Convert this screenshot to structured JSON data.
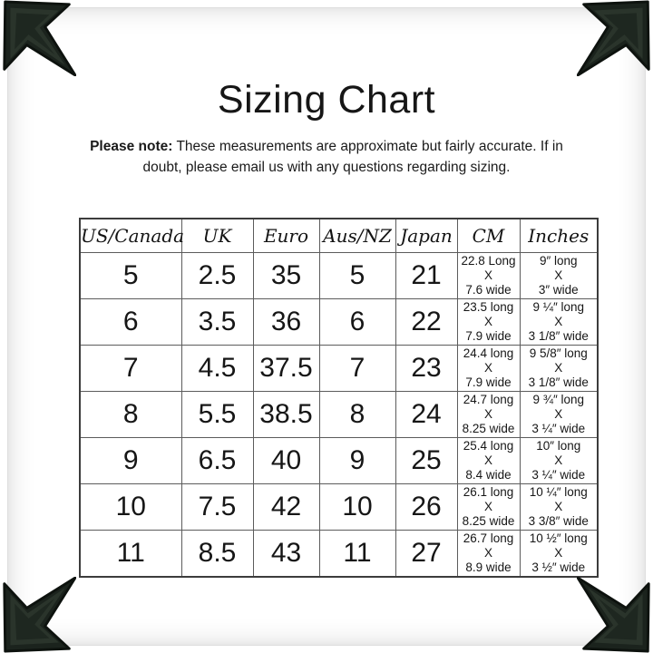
{
  "page": {
    "title": "Sizing Chart",
    "note_bold": "Please note:",
    "note_rest": "These measurements are approximate but fairly accurate. If in doubt, please email us with any questions regarding sizing."
  },
  "colors": {
    "text": "#161616",
    "table_border_outer": "#3c3c3c",
    "table_border_inner": "#5c5c5c",
    "photo_corner_dark": "#1b231d",
    "page_edge_shadow": "#e3e3e3"
  },
  "decorations": {
    "corner_icon": "photo-corner-icon",
    "corner_count": 4
  },
  "table": {
    "headers": [
      "US/Canada",
      "UK",
      "Euro",
      "Aus/NZ",
      "Japan",
      "CM",
      "Inches"
    ],
    "rows": [
      {
        "us": "5",
        "uk": "2.5",
        "euro": "35",
        "aus": "5",
        "japan": "21",
        "cm": [
          "22.8 Long",
          "X",
          "7.6 wide"
        ],
        "inches": [
          "9″ long",
          "X",
          "3″ wide"
        ]
      },
      {
        "us": "6",
        "uk": "3.5",
        "euro": "36",
        "aus": "6",
        "japan": "22",
        "cm": [
          "23.5 long",
          "X",
          "7.9 wide"
        ],
        "inches": [
          "9 ¼″ long",
          "X",
          "3 1/8″ wide"
        ]
      },
      {
        "us": "7",
        "uk": "4.5",
        "euro": "37.5",
        "aus": "7",
        "japan": "23",
        "cm": [
          "24.4 long",
          "X",
          "7.9 wide"
        ],
        "inches": [
          "9 5/8″ long",
          "X",
          "3 1/8″ wide"
        ]
      },
      {
        "us": "8",
        "uk": "5.5",
        "euro": "38.5",
        "aus": "8",
        "japan": "24",
        "cm": [
          "24.7 long",
          "X",
          "8.25 wide"
        ],
        "inches": [
          "9 ¾″ long",
          "X",
          "3 ¼″ wide"
        ]
      },
      {
        "us": "9",
        "uk": "6.5",
        "euro": "40",
        "aus": "9",
        "japan": "25",
        "cm": [
          "25.4 long",
          "X",
          "8.4 wide"
        ],
        "inches": [
          "10″ long",
          "X",
          "3 ¼″ wide"
        ]
      },
      {
        "us": "10",
        "uk": "7.5",
        "euro": "42",
        "aus": "10",
        "japan": "26",
        "cm": [
          "26.1 long",
          "X",
          "8.25 wide"
        ],
        "inches": [
          "10 ¼″ long",
          "X",
          "3 3/8″ wide"
        ]
      },
      {
        "us": "11",
        "uk": "8.5",
        "euro": "43",
        "aus": "11",
        "japan": "27",
        "cm": [
          "26.7 long",
          "X",
          "8.9 wide"
        ],
        "inches": [
          "10 ½″ long",
          "X",
          "3 ½″ wide"
        ]
      }
    ]
  }
}
